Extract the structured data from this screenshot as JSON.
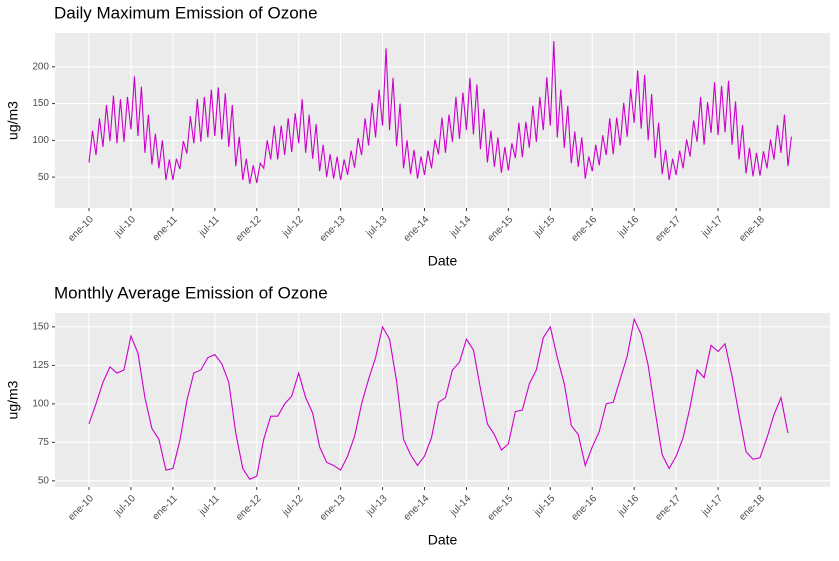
{
  "chart_data": [
    {
      "type": "line",
      "title": "Daily Maximum Emission of Ozone",
      "x_label": "Date",
      "y_label": "ug/m3",
      "color": "#cc00cc",
      "grid": true,
      "ylim": [
        8,
        246
      ],
      "yticks": [
        50,
        100,
        150,
        200
      ],
      "categories": [
        "ene-10",
        null,
        null,
        null,
        null,
        null,
        null,
        null,
        null,
        null,
        null,
        null,
        "jul-10",
        null,
        null,
        null,
        null,
        null,
        null,
        null,
        null,
        null,
        null,
        null,
        "ene-11",
        null,
        null,
        null,
        null,
        null,
        null,
        null,
        null,
        null,
        null,
        null,
        "jul-11",
        null,
        null,
        null,
        null,
        null,
        null,
        null,
        null,
        null,
        null,
        null,
        "ene-12",
        null,
        null,
        null,
        null,
        null,
        null,
        null,
        null,
        null,
        null,
        null,
        "jul-12",
        null,
        null,
        null,
        null,
        null,
        null,
        null,
        null,
        null,
        null,
        null,
        "ene-13",
        null,
        null,
        null,
        null,
        null,
        null,
        null,
        null,
        null,
        null,
        null,
        "jul-13",
        null,
        null,
        null,
        null,
        null,
        null,
        null,
        null,
        null,
        null,
        null,
        "ene-14",
        null,
        null,
        null,
        null,
        null,
        null,
        null,
        null,
        null,
        null,
        null,
        "jul-14",
        null,
        null,
        null,
        null,
        null,
        null,
        null,
        null,
        null,
        null,
        null,
        "ene-15",
        null,
        null,
        null,
        null,
        null,
        null,
        null,
        null,
        null,
        null,
        null,
        "jul-15",
        null,
        null,
        null,
        null,
        null,
        null,
        null,
        null,
        null,
        null,
        null,
        "ene-16",
        null,
        null,
        null,
        null,
        null,
        null,
        null,
        null,
        null,
        null,
        null,
        "jul-16",
        null,
        null,
        null,
        null,
        null,
        null,
        null,
        null,
        null,
        null,
        null,
        "ene-17",
        null,
        null,
        null,
        null,
        null,
        null,
        null,
        null,
        null,
        null,
        null,
        "jul-17",
        null,
        null,
        null,
        null,
        null,
        null,
        null,
        null,
        null,
        null,
        null,
        "ene-18",
        null,
        null,
        null,
        null,
        null,
        null,
        null,
        null,
        null
      ],
      "values": [
        70,
        113,
        80,
        130,
        91,
        148,
        99,
        161,
        96,
        156,
        98,
        159,
        115,
        187,
        106,
        173,
        83,
        135,
        67,
        109,
        62,
        100,
        46,
        74,
        46,
        75,
        61,
        99,
        82,
        133,
        96,
        156,
        98,
        159,
        104,
        169,
        106,
        172,
        101,
        164,
        91,
        148,
        65,
        105,
        46,
        75,
        41,
        66,
        42,
        69,
        62,
        100,
        74,
        120,
        74,
        120,
        80,
        130,
        84,
        137,
        96,
        156,
        83,
        135,
        75,
        122,
        58,
        94,
        50,
        81,
        48,
        78,
        46,
        74,
        53,
        86,
        63,
        103,
        80,
        130,
        93,
        151,
        104,
        169,
        120,
        225,
        114,
        185,
        92,
        150,
        62,
        100,
        54,
        87,
        48,
        78,
        53,
        86,
        62,
        101,
        81,
        131,
        83,
        135,
        98,
        159,
        102,
        165,
        114,
        185,
        108,
        176,
        88,
        143,
        70,
        113,
        64,
        104,
        56,
        91,
        59,
        96,
        76,
        124,
        77,
        125,
        90,
        147,
        98,
        159,
        114,
        186,
        120,
        235,
        104,
        169,
        90,
        147,
        69,
        112,
        64,
        104,
        48,
        78,
        58,
        94,
        66,
        107,
        80,
        130,
        81,
        131,
        93,
        151,
        105,
        170,
        124,
        195,
        116,
        189,
        100,
        163,
        76,
        124,
        54,
        87,
        46,
        75,
        53,
        86,
        62,
        101,
        78,
        127,
        98,
        159,
        94,
        152,
        110,
        179,
        107,
        174,
        111,
        181,
        94,
        153,
        74,
        121,
        55,
        90,
        51,
        83,
        52,
        85,
        62,
        101,
        74,
        121,
        83,
        135,
        65,
        105
      ]
    },
    {
      "type": "line",
      "title": "Monthly Average Emission of Ozone",
      "x_label": "Date",
      "y_label": "ug/m3",
      "color": "#cc00cc",
      "grid": true,
      "ylim": [
        46,
        159
      ],
      "yticks": [
        50,
        75,
        100,
        125,
        150
      ],
      "categories": [
        "ene-10",
        null,
        null,
        null,
        null,
        null,
        "jul-10",
        null,
        null,
        null,
        null,
        null,
        "ene-11",
        null,
        null,
        null,
        null,
        null,
        "jul-11",
        null,
        null,
        null,
        null,
        null,
        "ene-12",
        null,
        null,
        null,
        null,
        null,
        "jul-12",
        null,
        null,
        null,
        null,
        null,
        "ene-13",
        null,
        null,
        null,
        null,
        null,
        "jul-13",
        null,
        null,
        null,
        null,
        null,
        "ene-14",
        null,
        null,
        null,
        null,
        null,
        "jul-14",
        null,
        null,
        null,
        null,
        null,
        "ene-15",
        null,
        null,
        null,
        null,
        null,
        "jul-15",
        null,
        null,
        null,
        null,
        null,
        "ene-16",
        null,
        null,
        null,
        null,
        null,
        "jul-16",
        null,
        null,
        null,
        null,
        null,
        "ene-17",
        null,
        null,
        null,
        null,
        null,
        "jul-17",
        null,
        null,
        null,
        null,
        null,
        "ene-18",
        null,
        null,
        null,
        null
      ],
      "values": [
        87,
        100,
        114,
        124,
        120,
        122,
        144,
        133,
        104,
        84,
        77,
        57,
        58,
        76,
        102,
        120,
        122,
        130,
        132,
        126,
        114,
        81,
        58,
        51,
        53,
        77,
        92,
        92,
        100,
        105,
        120,
        104,
        94,
        72,
        62,
        60,
        57,
        66,
        79,
        100,
        116,
        130,
        150,
        142,
        115,
        77,
        67,
        60,
        66,
        78,
        101,
        104,
        122,
        127,
        142,
        135,
        110,
        87,
        80,
        70,
        74,
        95,
        96,
        113,
        122,
        143,
        150,
        130,
        113,
        86,
        80,
        60,
        72,
        82,
        100,
        101,
        116,
        131,
        155,
        145,
        125,
        95,
        67,
        58,
        66,
        78,
        98,
        122,
        117,
        138,
        134,
        139,
        118,
        93,
        69,
        64,
        65,
        78,
        93,
        104,
        81
      ]
    }
  ]
}
